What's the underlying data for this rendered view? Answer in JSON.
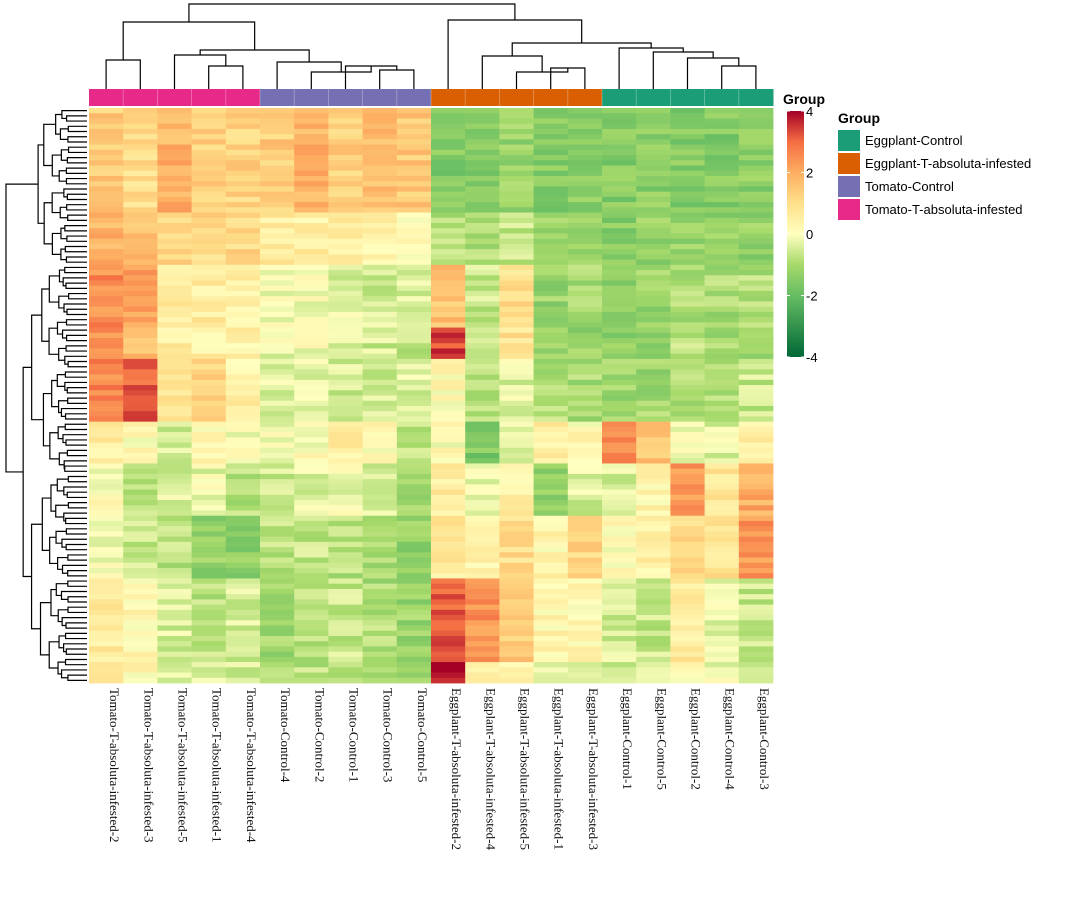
{
  "chart_data": {
    "type": "heatmap",
    "title": "",
    "annotation_title": "Group",
    "legend_title": "Group",
    "columns": [
      {
        "label": "Tomato-T-absoluta-infested-2",
        "group": "Tomato-T-absoluta-infested"
      },
      {
        "label": "Tomato-T-absoluta-infested-3",
        "group": "Tomato-T-absoluta-infested"
      },
      {
        "label": "Tomato-T-absoluta-infested-5",
        "group": "Tomato-T-absoluta-infested"
      },
      {
        "label": "Tomato-T-absoluta-infested-1",
        "group": "Tomato-T-absoluta-infested"
      },
      {
        "label": "Tomato-T-absoluta-infested-4",
        "group": "Tomato-T-absoluta-infested"
      },
      {
        "label": "Tomato-Control-4",
        "group": "Tomato-Control"
      },
      {
        "label": "Tomato-Control-2",
        "group": "Tomato-Control"
      },
      {
        "label": "Tomato-Control-1",
        "group": "Tomato-Control"
      },
      {
        "label": "Tomato-Control-3",
        "group": "Tomato-Control"
      },
      {
        "label": "Tomato-Control-5",
        "group": "Tomato-Control"
      },
      {
        "label": "Eggplant-T-absoluta-infested-2",
        "group": "Eggplant-T-absoluta-infested"
      },
      {
        "label": "Eggplant-T-absoluta-infested-4",
        "group": "Eggplant-T-absoluta-infested"
      },
      {
        "label": "Eggplant-T-absoluta-infested-5",
        "group": "Eggplant-T-absoluta-infested"
      },
      {
        "label": "Eggplant-T-absoluta-infested-1",
        "group": "Eggplant-T-absoluta-infested"
      },
      {
        "label": "Eggplant-T-absoluta-infested-3",
        "group": "Eggplant-T-absoluta-infested"
      },
      {
        "label": "Eggplant-Control-1",
        "group": "Eggplant-Control"
      },
      {
        "label": "Eggplant-Control-5",
        "group": "Eggplant-Control"
      },
      {
        "label": "Eggplant-Control-2",
        "group": "Eggplant-Control"
      },
      {
        "label": "Eggplant-Control-4",
        "group": "Eggplant-Control"
      },
      {
        "label": "Eggplant-Control-3",
        "group": "Eggplant-Control"
      }
    ],
    "groups": [
      {
        "name": "Eggplant-Control",
        "color": "#1b9e77"
      },
      {
        "name": "Eggplant-T-absoluta-infested",
        "color": "#d95f02"
      },
      {
        "name": "Tomato-Control",
        "color": "#7570b3"
      },
      {
        "name": "Tomato-T-absoluta-infested",
        "color": "#e7298a"
      }
    ],
    "color_scale": {
      "min": -4,
      "max": 4,
      "ticks": [
        4,
        2,
        0,
        -2,
        -4
      ],
      "stops": [
        {
          "value": -4,
          "color": "#006837"
        },
        {
          "value": -2,
          "color": "#66bd63"
        },
        {
          "value": -1,
          "color": "#a6d96a"
        },
        {
          "value": 0,
          "color": "#ffffbf"
        },
        {
          "value": 1,
          "color": "#fee08b"
        },
        {
          "value": 2,
          "color": "#fdae61"
        },
        {
          "value": 3,
          "color": "#f46d43"
        },
        {
          "value": 4,
          "color": "#a50026"
        }
      ]
    },
    "row_blocks": [
      {
        "rows": 20,
        "profile": [
          1.4,
          1.0,
          1.9,
          1.3,
          1.2,
          1.4,
          1.8,
          1.3,
          1.6,
          1.5,
          -1.5,
          -1.4,
          -1.2,
          -1.5,
          -1.4,
          -1.5,
          -1.4,
          -1.5,
          -1.5,
          -1.4
        ]
      },
      {
        "rows": 10,
        "profile": [
          1.9,
          1.6,
          1.1,
          1.1,
          1.1,
          0.6,
          0.5,
          0.6,
          0.4,
          0.3,
          -0.8,
          -1.0,
          -0.6,
          -1.2,
          -1.2,
          -1.4,
          -1.3,
          -1.2,
          -1.3,
          -1.3
        ]
      },
      {
        "rows": 12,
        "profile": [
          2.5,
          2.2,
          0.7,
          0.6,
          0.5,
          -0.1,
          0.0,
          -0.3,
          -0.5,
          -0.5,
          1.6,
          -0.6,
          1.0,
          -1.2,
          -1.1,
          -1.4,
          -1.2,
          -0.9,
          -1.0,
          -0.9
        ]
      },
      {
        "rows": 6,
        "profile": [
          2.4,
          1.6,
          0.6,
          0.5,
          0.4,
          -0.2,
          -0.1,
          -0.4,
          -0.5,
          -0.6,
          3.4,
          -0.5,
          0.9,
          -1.0,
          -1.2,
          -1.3,
          -1.2,
          -0.7,
          -1.0,
          -1.0
        ]
      },
      {
        "rows": 12,
        "profile": [
          2.6,
          3.1,
          0.7,
          1.1,
          0.4,
          -0.3,
          -0.2,
          -0.5,
          -0.6,
          -0.4,
          0.2,
          -0.8,
          -0.3,
          -0.9,
          -1.0,
          -1.1,
          -1.1,
          -0.9,
          -0.8,
          -0.6
        ]
      },
      {
        "rows": 8,
        "profile": [
          0.6,
          0.1,
          -0.4,
          0.2,
          -0.1,
          -0.2,
          0.1,
          0.6,
          0.2,
          -0.6,
          0.1,
          -1.6,
          -0.3,
          0.6,
          0.2,
          2.4,
          1.5,
          -0.1,
          -0.3,
          0.5
        ]
      },
      {
        "rows": 10,
        "profile": [
          0.0,
          -0.8,
          -0.4,
          -0.2,
          -0.9,
          -0.5,
          -0.3,
          -0.2,
          -0.4,
          -1.0,
          0.6,
          -0.2,
          0.5,
          -1.3,
          -0.4,
          -0.5,
          0.3,
          2.3,
          0.7,
          2.0
        ]
      },
      {
        "rows": 12,
        "profile": [
          -0.1,
          -0.6,
          -0.8,
          -1.3,
          -1.4,
          -0.8,
          -0.7,
          -0.8,
          -1.0,
          -1.3,
          0.7,
          0.3,
          1.0,
          0.3,
          1.2,
          0.2,
          0.4,
          1.0,
          0.9,
          2.3
        ]
      },
      {
        "rows": 16,
        "profile": [
          0.6,
          0.3,
          -0.4,
          -0.8,
          -0.5,
          -1.1,
          -0.9,
          -0.6,
          -0.9,
          -1.2,
          3.2,
          2.4,
          1.4,
          0.3,
          0.2,
          -0.5,
          -0.6,
          0.6,
          -0.3,
          -0.6
        ]
      },
      {
        "rows": 4,
        "profile": [
          0.5,
          0.2,
          -0.3,
          -0.4,
          -0.4,
          -0.9,
          -0.8,
          -0.7,
          -0.8,
          -0.9,
          4.0,
          0.6,
          0.4,
          -0.2,
          -0.1,
          -0.6,
          -0.4,
          0.2,
          -0.2,
          -0.4
        ]
      }
    ]
  }
}
